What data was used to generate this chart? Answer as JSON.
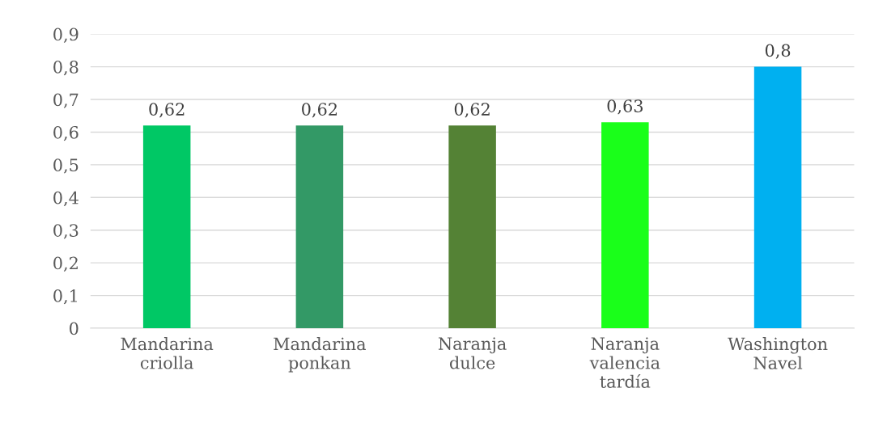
{
  "chart_data": {
    "type": "bar",
    "categories": [
      "Mandarina\ncriolla",
      "Mandarina\nponkan",
      "Naranja\ndulce",
      "Naranja\nvalencia\ntardía",
      "Washington\nNavel"
    ],
    "values": [
      0.62,
      0.62,
      0.62,
      0.63,
      0.8
    ],
    "colors": [
      "#00c865",
      "#339966",
      "#548235",
      "#1aff1a",
      "#00b0f0"
    ],
    "value_labels": [
      "0,62",
      "0,62",
      "0,62",
      "0,63",
      "0,8"
    ],
    "ylim": [
      0,
      0.9
    ],
    "yticks": [
      0,
      {
        "value": 0.1,
        "label": "0,1"
      },
      {
        "value": 0.2,
        "label": "0,2"
      },
      {
        "value": 0.3,
        "label": "0,3"
      },
      {
        "value": 0.4,
        "label": "0,4"
      },
      {
        "value": 0.5,
        "label": "0,5"
      },
      {
        "value": 0.6,
        "label": "0,6"
      },
      {
        "value": 0.7,
        "label": "0,7"
      },
      {
        "value": 0.8,
        "label": "0,8"
      },
      {
        "value": 0.9,
        "label": "0,9"
      }
    ],
    "grid": "y",
    "legend": false
  }
}
